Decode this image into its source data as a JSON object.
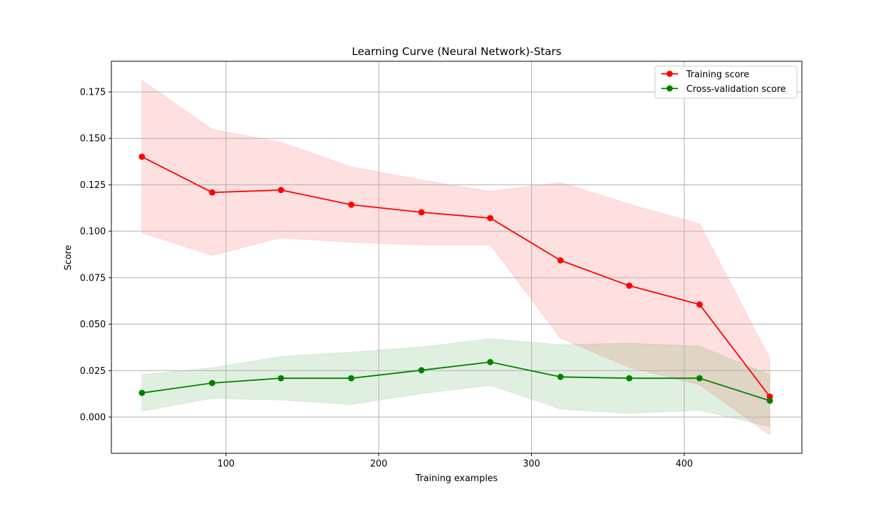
{
  "chart_data": {
    "type": "line",
    "title": "Learning Curve (Neural Network)-Stars",
    "xlabel": "Training examples",
    "ylabel": "Score",
    "xlim": [
      25,
      477
    ],
    "ylim": [
      -0.0195,
      0.1915
    ],
    "xticks": [
      100,
      200,
      300,
      400
    ],
    "yticks": [
      0.0,
      0.025,
      0.05,
      0.075,
      0.1,
      0.125,
      0.15,
      0.175
    ],
    "ytick_labels": [
      "0.000",
      "0.025",
      "0.050",
      "0.075",
      "0.100",
      "0.125",
      "0.150",
      "0.175"
    ],
    "grid": true,
    "legend_position": "top-right",
    "x": [
      45,
      91,
      136,
      182,
      228,
      273,
      319,
      364,
      410,
      456
    ],
    "series": [
      {
        "name": "Training score",
        "color": "#ff0000",
        "band_color": "#ffc0c0",
        "values": [
          0.1401,
          0.1209,
          0.1222,
          0.1143,
          0.1102,
          0.1071,
          0.0843,
          0.0707,
          0.0606,
          0.011
        ],
        "upper": [
          0.1812,
          0.1548,
          0.1479,
          0.1346,
          0.1276,
          0.1215,
          0.1262,
          0.1146,
          0.1039,
          0.0316
        ],
        "lower": [
          0.0992,
          0.0871,
          0.0966,
          0.0941,
          0.0928,
          0.0928,
          0.0425,
          0.0268,
          0.0174,
          -0.0096
        ]
      },
      {
        "name": "Cross-validation score",
        "color": "#008000",
        "band_color": "#c8e6c8",
        "values": [
          0.013,
          0.0183,
          0.0209,
          0.0209,
          0.0252,
          0.0296,
          0.0216,
          0.0209,
          0.0209,
          0.0088
        ],
        "upper": [
          0.0227,
          0.0265,
          0.0326,
          0.0349,
          0.0377,
          0.0421,
          0.0389,
          0.0397,
          0.0381,
          0.0228
        ],
        "lower": [
          0.0033,
          0.0101,
          0.0092,
          0.0068,
          0.0127,
          0.0171,
          0.0043,
          0.0021,
          0.0037,
          -0.0052
        ]
      }
    ]
  }
}
